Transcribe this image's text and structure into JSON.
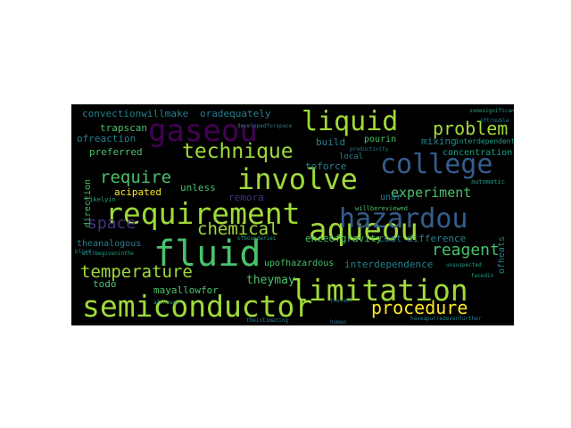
{
  "palette": {
    "background": "#000000",
    "canvas": "#ffffff",
    "colors": [
      "#440154",
      "#46327e",
      "#365c8d",
      "#277f8e",
      "#1fa187",
      "#4ac16d",
      "#a0da39",
      "#fde725"
    ]
  },
  "words": {
    "semiconductor": "semiconductor",
    "requirement": "requirement",
    "fluid": "fluid",
    "aqueou": "aqueou",
    "limitation": "limitation",
    "hazardou": "hazardou",
    "college": "college",
    "gaseou": "gaseou",
    "liquid": "liquid",
    "involve": "involve",
    "technique": "technique",
    "procedure": "procedure",
    "problem": "problem",
    "chemical": "chemical",
    "temperature": "temperature",
    "require": "require",
    "space": "space",
    "reagent": "reagent",
    "experiment": "experiment",
    "theymay": "theymay",
    "convectionwillmake": "convectionwillmake",
    "oradequately": "oradequately",
    "ofreaction": "ofreaction",
    "trapscan": "trapscan",
    "preferred": "preferred",
    "build": "build",
    "mixing": "mixing",
    "pourin": "pourin",
    "interdependent": "interdependent",
    "concentration": "concentration",
    "toforce": "toforce",
    "unless": "unless",
    "acipated": "acipated",
    "direction": "direction",
    "remora": "remora",
    "theanalogous": "theanalogous",
    "todo": "todo",
    "enceofgravity": "enceofgravity",
    "coat": "coat",
    "difference": "difference",
    "ofheats": "ofheats",
    "upofhazardous": "upofhazardous",
    "interdependence": "interdependence",
    "mayallowfor": "mayallowfor",
    "willbereviewed": "willbereviewed",
    "unar": "unar",
    "automatic": "automatic",
    "local": "local",
    "productivity": "productivity",
    "willbegiveninthe": "willbegiveninthe",
    "unsuspected": "unsuspected",
    "haveapurredevenfurther": "haveapurredevenfurther",
    "likelyin": "likelyin",
    "blood": "blood",
    "human": "human",
    "facedin": "facedin",
    "thereof": "thereof",
    "mayallowfor2": "mayallowfor",
    "ofboundaries": "ofboundaries",
    "somesignificant": "somesignificant",
    "oftrouble": "oftrouble",
    "theintimating": "theintimating",
    "although": "although",
    "developedforspace": "developedforspace"
  }
}
